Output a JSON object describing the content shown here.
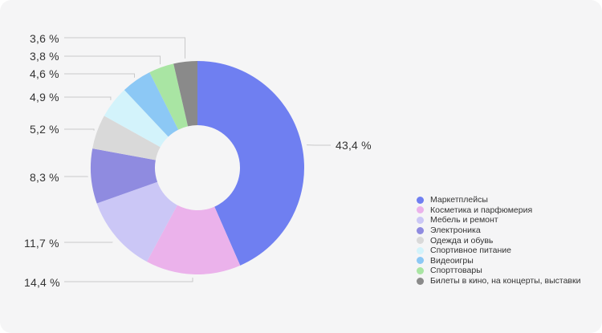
{
  "chart_data": {
    "type": "pie",
    "donut": true,
    "legend_position": "right",
    "categories": [
      "Маркетплейсы",
      "Косметика и парфюмерия",
      "Мебель и ремонт",
      "Электроника",
      "Одежда и обувь",
      "Спортивное питание",
      "Видеоигры",
      "Спорттовары",
      "Билеты в кино, на концерты, выставки"
    ],
    "values": [
      43.4,
      14.4,
      11.7,
      8.3,
      5.2,
      4.9,
      4.6,
      3.8,
      3.6
    ],
    "value_labels": [
      "43,4 %",
      "14,4 %",
      "11,7 %",
      "8,3 %",
      "5,2 %",
      "4,9 %",
      "4,6 %",
      "3,8 %",
      "3,6 %"
    ],
    "colors": [
      "#6f7ff1",
      "#ebb2eb",
      "#cbc7f6",
      "#8f8be0",
      "#d9d9d9",
      "#d3f3fb",
      "#8cc8f5",
      "#a9e5a3",
      "#8a8a8a"
    ]
  }
}
